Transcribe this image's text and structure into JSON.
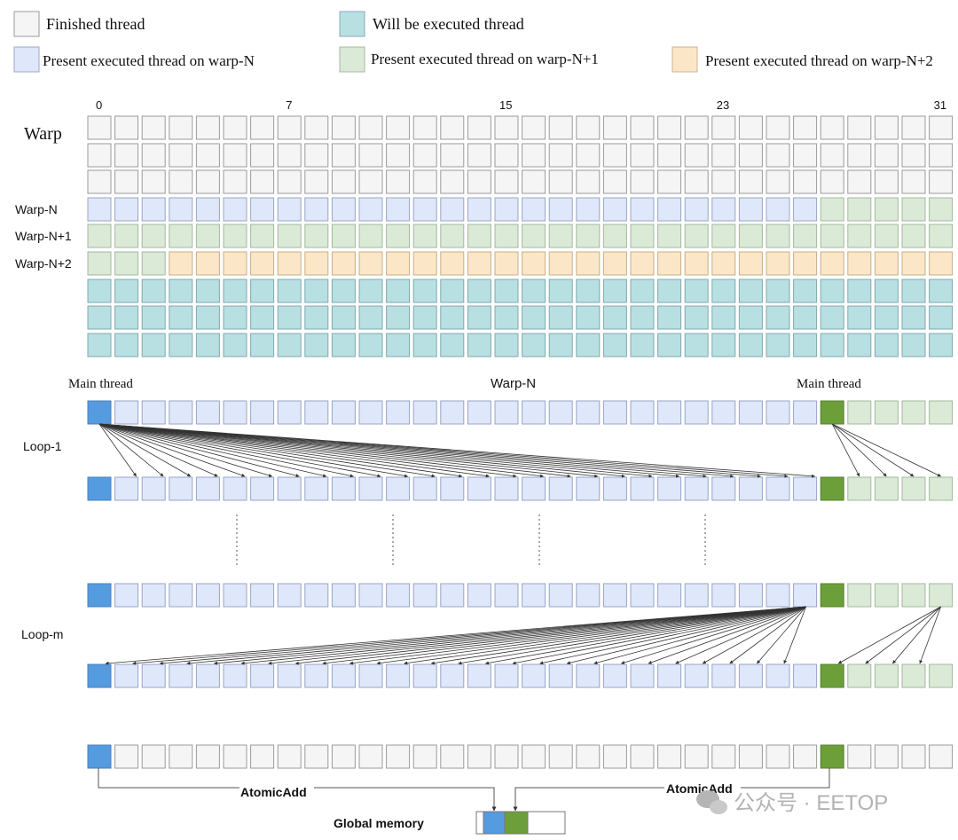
{
  "legend": {
    "finished": "Finished thread",
    "will_execute": "Will be executed thread",
    "present_n": "Present executed thread on warp-N",
    "present_n1": "Present executed thread on warp-N+1",
    "present_n2": "Present executed thread on warp-N+2"
  },
  "grid": {
    "title": "Warp",
    "columns": 32,
    "index_labels": [
      {
        "index": 0,
        "text": "0"
      },
      {
        "index": 7,
        "text": "7"
      },
      {
        "index": 15,
        "text": "15"
      },
      {
        "index": 23,
        "text": "23"
      },
      {
        "index": 31,
        "text": "31"
      }
    ],
    "rows": [
      {
        "label": "",
        "pattern": [
          [
            "finished",
            32
          ]
        ]
      },
      {
        "label": "",
        "pattern": [
          [
            "finished",
            32
          ]
        ]
      },
      {
        "label": "",
        "pattern": [
          [
            "finished",
            32
          ]
        ]
      },
      {
        "label": "Warp-N",
        "pattern": [
          [
            "present_n",
            27
          ],
          [
            "present_n1",
            5
          ]
        ]
      },
      {
        "label": "Warp-N+1",
        "pattern": [
          [
            "present_n1",
            32
          ]
        ]
      },
      {
        "label": "Warp-N+2",
        "pattern": [
          [
            "present_n1",
            3
          ],
          [
            "present_n2",
            29
          ]
        ]
      },
      {
        "label": "",
        "pattern": [
          [
            "will_execute",
            32
          ]
        ]
      },
      {
        "label": "",
        "pattern": [
          [
            "will_execute",
            32
          ]
        ]
      },
      {
        "label": "",
        "pattern": [
          [
            "will_execute",
            32
          ]
        ]
      }
    ]
  },
  "reduction": {
    "main_thread_left": "Main thread",
    "warp_label": "Warp-N",
    "main_thread_right": "Main thread",
    "loop1": "Loop-1",
    "loopm": "Loop-m",
    "atomic_left": "AtomicAdd",
    "atomic_right": "AtomicAdd",
    "global_memory": "Global  memory",
    "watermark": "公众号 · EETOP"
  },
  "colors": {
    "finished": "#f5f5f5",
    "will_execute": "#b8e0e2",
    "present_n": "#dfe7fb",
    "present_n1": "#dbe9d7",
    "present_n2": "#fbe6c8",
    "main_blue": "#559be0",
    "main_green": "#6c9f3a",
    "border": "#9a9a9a",
    "arrow": "#333333"
  }
}
